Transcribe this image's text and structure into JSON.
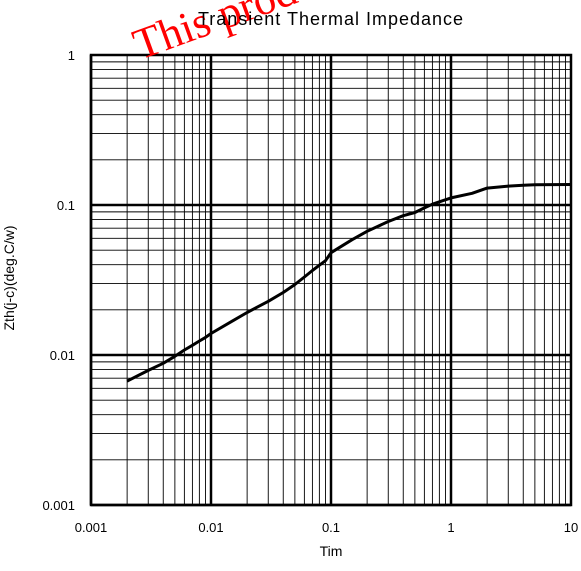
{
  "chart_data": {
    "type": "line",
    "title": "Transient Thermal Impedance",
    "xlabel": "Tim",
    "ylabel": "Zth(j-c)(deg.C/w)",
    "xscale": "log",
    "yscale": "log",
    "xlim": [
      0.001,
      10
    ],
    "ylim": [
      0.001,
      1
    ],
    "grid": true,
    "xticks": [
      "0.001",
      "0.01",
      "0.1",
      "1",
      "10"
    ],
    "yticks": [
      "0.001",
      "0.01",
      "0.1",
      "1"
    ],
    "series": [
      {
        "color": "#000000",
        "x": [
          0.002,
          0.003,
          0.004,
          0.005,
          0.006,
          0.007,
          0.008,
          0.009,
          0.01,
          0.015,
          0.02,
          0.03,
          0.04,
          0.05,
          0.06,
          0.07,
          0.08,
          0.09,
          0.1,
          0.15,
          0.2,
          0.3,
          0.4,
          0.5,
          0.6,
          0.7,
          0.8,
          1,
          1.5,
          2,
          3,
          4,
          5,
          10
        ],
        "y": [
          0.0067,
          0.0079,
          0.0088,
          0.0098,
          0.0108,
          0.0116,
          0.0124,
          0.0131,
          0.0139,
          0.0168,
          0.0192,
          0.0228,
          0.0261,
          0.0295,
          0.0331,
          0.0366,
          0.0397,
          0.0425,
          0.0481,
          0.0587,
          0.0668,
          0.0776,
          0.0848,
          0.0891,
          0.0956,
          0.1012,
          0.1051,
          0.1116,
          0.1196,
          0.1296,
          0.1336,
          0.1356,
          0.1365,
          0.137
        ]
      }
    ]
  },
  "watermark": {
    "text": "This product is Not",
    "color": "#ff0000"
  }
}
